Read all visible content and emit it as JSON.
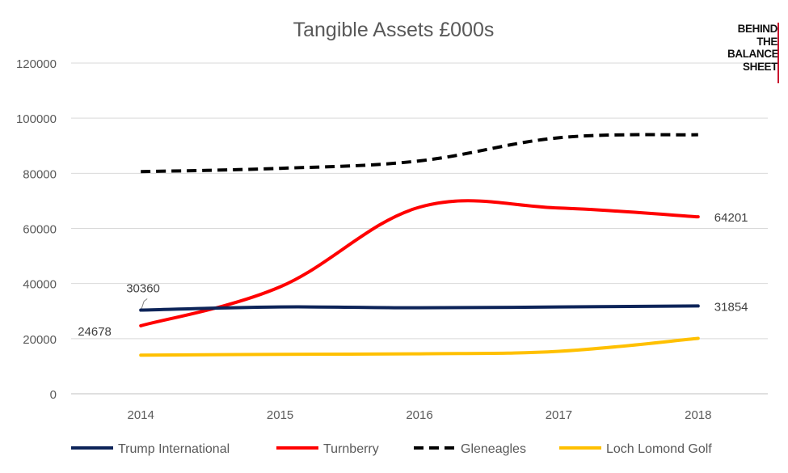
{
  "chart_data": {
    "type": "line",
    "title": "Tangible Assets £000s",
    "categories": [
      "2014",
      "2015",
      "2016",
      "2017",
      "2018"
    ],
    "ylim": [
      0,
      120000
    ],
    "yticks": [
      "0",
      "20000",
      "40000",
      "60000",
      "80000",
      "100000",
      "120000"
    ],
    "grid": true,
    "legend_position": "bottom",
    "series": [
      {
        "name": "Trump International",
        "values": [
          30360,
          31500,
          31200,
          31500,
          31854
        ],
        "color": "#0d2459",
        "dashed": false
      },
      {
        "name": "Turnberry",
        "values": [
          24678,
          38800,
          67700,
          67400,
          64201
        ],
        "color": "#ff0000",
        "dashed": false
      },
      {
        "name": "Gleneagles",
        "values": [
          80600,
          81800,
          84500,
          92900,
          94000
        ],
        "color": "#000000",
        "dashed": true
      },
      {
        "name": "Loch Lomond Golf",
        "values": [
          14000,
          14300,
          14500,
          15400,
          20100
        ],
        "color": "#ffc000",
        "dashed": false
      }
    ],
    "data_labels": [
      {
        "series": 0,
        "index": 0,
        "text": "30360"
      },
      {
        "series": 1,
        "index": 0,
        "text": "24678"
      },
      {
        "series": 1,
        "index": 4,
        "text": "64201"
      },
      {
        "series": 0,
        "index": 4,
        "text": "31854"
      }
    ]
  },
  "logo": {
    "lines": [
      "BEHIND",
      "THE",
      "BALANCE",
      "SHEET"
    ],
    "accent": "#c8102e"
  }
}
